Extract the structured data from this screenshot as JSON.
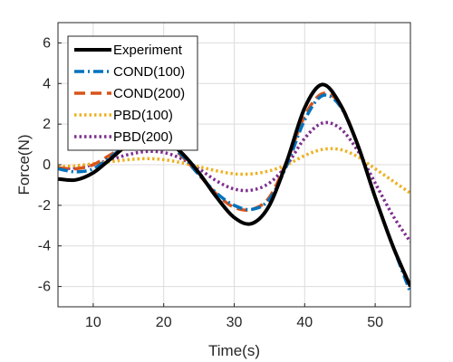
{
  "chart_data": {
    "type": "line",
    "xlabel": "Time(s)",
    "ylabel": "Force(N)",
    "xlim": [
      5,
      55
    ],
    "ylim": [
      -7,
      7
    ],
    "xticks": [
      10,
      20,
      30,
      40,
      50
    ],
    "yticks": [
      -6,
      -4,
      -2,
      0,
      2,
      4,
      6
    ],
    "grid": true,
    "legend_position": "top-left",
    "x": [
      5,
      7.5,
      10,
      12.5,
      15,
      17.5,
      20,
      22.5,
      25,
      27.5,
      30,
      32.5,
      35,
      37.5,
      40,
      42.5,
      45,
      47.5,
      50,
      52.5,
      55
    ],
    "series": [
      {
        "name": "Experiment",
        "color": "#000000",
        "style": "solid",
        "values": [
          -0.7,
          -0.75,
          -0.4,
          0.3,
          1.0,
          1.35,
          1.2,
          0.6,
          -0.4,
          -1.6,
          -2.6,
          -2.9,
          -2.0,
          0.2,
          2.8,
          3.95,
          3.0,
          1.0,
          -1.6,
          -4.0,
          -6.0
        ]
      },
      {
        "name": "COND(100)",
        "color": "#0072bd",
        "style": "dashdot",
        "values": [
          -0.2,
          -0.35,
          -0.2,
          0.4,
          1.0,
          1.25,
          1.1,
          0.5,
          -0.5,
          -1.4,
          -2.0,
          -2.2,
          -1.7,
          0.0,
          2.2,
          3.4,
          2.9,
          1.0,
          -1.6,
          -4.0,
          -6.3
        ]
      },
      {
        "name": "COND(200)",
        "color": "#d95319",
        "style": "dashed",
        "values": [
          -0.15,
          -0.2,
          0.0,
          0.5,
          1.0,
          1.25,
          1.05,
          0.45,
          -0.5,
          -1.45,
          -2.1,
          -2.2,
          -1.6,
          0.2,
          2.4,
          3.5,
          3.0,
          1.0,
          -1.6,
          -4.0,
          -6.0
        ]
      },
      {
        "name": "PBD(100)",
        "color": "#edb120",
        "style": "dotted",
        "values": [
          -0.1,
          -0.05,
          0.05,
          0.15,
          0.25,
          0.3,
          0.25,
          0.1,
          -0.1,
          -0.3,
          -0.45,
          -0.45,
          -0.3,
          0.0,
          0.45,
          0.75,
          0.75,
          0.4,
          -0.2,
          -0.8,
          -1.4
        ]
      },
      {
        "name": "PBD(200)",
        "color": "#7e2f8e",
        "style": "dotted",
        "values": [
          -0.2,
          -0.15,
          0.0,
          0.25,
          0.5,
          0.65,
          0.6,
          0.3,
          -0.2,
          -0.8,
          -1.2,
          -1.25,
          -0.9,
          0.0,
          1.3,
          2.05,
          1.8,
          0.7,
          -0.9,
          -2.5,
          -3.8
        ]
      }
    ]
  }
}
